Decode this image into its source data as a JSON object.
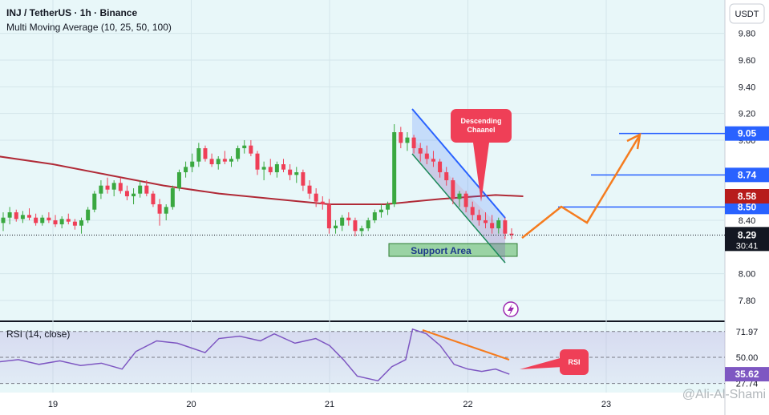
{
  "header": {
    "title": "INJ / TetherUS · 1h · Binance",
    "indicator": "Multi Moving Average (10, 25, 50, 100)"
  },
  "currency_button": "USDT",
  "annotations": {
    "descending_channel": "Descending\nChaanel",
    "support_area": "Support Area",
    "rsi_callout": "RSI"
  },
  "rsi_panel": {
    "title": "RSI (14, close)",
    "ticks": [
      "71.97",
      "50.00",
      "27.74"
    ],
    "current_label": "35.62"
  },
  "watermark": "@Ali-Al-Shami",
  "colors": {
    "bull": "#26a69a",
    "bull_candle": "#3aa840",
    "bear": "#ef3f57",
    "ma": "#b02a37",
    "channel": "#2962ff",
    "orange": "#f57c1f",
    "rsi": "#7e57c2",
    "support": "#66bb6a",
    "price_box": "#2962ff",
    "ma_box": "#b71c1c",
    "current_box": "#131722"
  },
  "chart_data": [
    {
      "type": "candlestick",
      "title": "INJ / TetherUS · 1h · Binance",
      "x_ticks": [
        "19",
        "20",
        "21",
        "22",
        "23"
      ],
      "y_ticks": [
        "9.80",
        "9.60",
        "9.40",
        "9.20",
        "9.00",
        "8.40",
        "8.00",
        "7.80"
      ],
      "ylim": [
        7.65,
        10.05
      ],
      "x_range_days": [
        18.6,
        23.2
      ],
      "current_price": {
        "value": 8.29,
        "countdown": "30:41"
      },
      "price_levels": [
        {
          "value": 9.05,
          "label": "9.05"
        },
        {
          "value": 8.74,
          "label": "8.74"
        },
        {
          "value": 8.5,
          "label": "8.50"
        }
      ],
      "moving_average": {
        "value": 8.58,
        "label": "8.58",
        "x": [
          18.6,
          19.0,
          19.4,
          19.8,
          20.2,
          20.6,
          21.0,
          21.4,
          21.8,
          22.2,
          22.4
        ],
        "y": [
          8.88,
          8.82,
          8.74,
          8.66,
          8.6,
          8.56,
          8.52,
          8.52,
          8.56,
          8.59,
          8.58
        ]
      },
      "ohlc": [
        [
          8.38,
          8.46,
          8.32,
          8.42
        ],
        [
          8.42,
          8.5,
          8.37,
          8.46
        ],
        [
          8.46,
          8.48,
          8.39,
          8.41
        ],
        [
          8.41,
          8.47,
          8.38,
          8.44
        ],
        [
          8.44,
          8.49,
          8.4,
          8.42
        ],
        [
          8.42,
          8.45,
          8.36,
          8.38
        ],
        [
          8.38,
          8.44,
          8.36,
          8.42
        ],
        [
          8.42,
          8.46,
          8.38,
          8.4
        ],
        [
          8.4,
          8.44,
          8.35,
          8.37
        ],
        [
          8.37,
          8.43,
          8.34,
          8.41
        ],
        [
          8.41,
          8.45,
          8.37,
          8.39
        ],
        [
          8.39,
          8.41,
          8.33,
          8.36
        ],
        [
          8.36,
          8.42,
          8.3,
          8.4
        ],
        [
          8.4,
          8.5,
          8.38,
          8.48
        ],
        [
          8.48,
          8.62,
          8.46,
          8.6
        ],
        [
          8.6,
          8.7,
          8.56,
          8.66
        ],
        [
          8.66,
          8.72,
          8.6,
          8.63
        ],
        [
          8.63,
          8.7,
          8.58,
          8.68
        ],
        [
          8.68,
          8.72,
          8.6,
          8.62
        ],
        [
          8.62,
          8.66,
          8.55,
          8.58
        ],
        [
          8.58,
          8.64,
          8.52,
          8.6
        ],
        [
          8.6,
          8.7,
          8.57,
          8.66
        ],
        [
          8.66,
          8.7,
          8.58,
          8.6
        ],
        [
          8.6,
          8.62,
          8.5,
          8.52
        ],
        [
          8.52,
          8.56,
          8.36,
          8.45
        ],
        [
          8.45,
          8.52,
          8.4,
          8.5
        ],
        [
          8.5,
          8.66,
          8.48,
          8.64
        ],
        [
          8.64,
          8.78,
          8.62,
          8.76
        ],
        [
          8.76,
          8.84,
          8.72,
          8.8
        ],
        [
          8.8,
          8.9,
          8.76,
          8.84
        ],
        [
          8.84,
          8.98,
          8.8,
          8.94
        ],
        [
          8.94,
          8.96,
          8.84,
          8.86
        ],
        [
          8.86,
          8.9,
          8.8,
          8.82
        ],
        [
          8.82,
          8.88,
          8.78,
          8.86
        ],
        [
          8.86,
          8.92,
          8.82,
          8.84
        ],
        [
          8.84,
          8.88,
          8.8,
          8.86
        ],
        [
          8.86,
          8.96,
          8.84,
          8.94
        ],
        [
          8.94,
          9.0,
          8.9,
          8.96
        ],
        [
          8.96,
          9.0,
          8.88,
          8.9
        ],
        [
          8.9,
          8.92,
          8.74,
          8.78
        ],
        [
          8.78,
          8.84,
          8.7,
          8.8
        ],
        [
          8.8,
          8.86,
          8.74,
          8.76
        ],
        [
          8.76,
          8.84,
          8.72,
          8.82
        ],
        [
          8.82,
          8.86,
          8.76,
          8.78
        ],
        [
          8.78,
          8.82,
          8.7,
          8.74
        ],
        [
          8.74,
          8.8,
          8.68,
          8.76
        ],
        [
          8.76,
          8.78,
          8.62,
          8.66
        ],
        [
          8.66,
          8.7,
          8.56,
          8.6
        ],
        [
          8.6,
          8.64,
          8.5,
          8.54
        ],
        [
          8.54,
          8.58,
          8.48,
          8.52
        ],
        [
          8.52,
          8.56,
          8.3,
          8.34
        ],
        [
          8.34,
          8.4,
          8.3,
          8.36
        ],
        [
          8.36,
          8.44,
          8.32,
          8.42
        ],
        [
          8.42,
          8.46,
          8.36,
          8.4
        ],
        [
          8.4,
          8.42,
          8.28,
          8.32
        ],
        [
          8.32,
          8.36,
          8.28,
          8.34
        ],
        [
          8.34,
          8.42,
          8.32,
          8.4
        ],
        [
          8.4,
          8.48,
          8.38,
          8.46
        ],
        [
          8.46,
          8.52,
          8.42,
          8.48
        ],
        [
          8.48,
          8.54,
          8.44,
          8.52
        ],
        [
          8.52,
          9.12,
          8.5,
          9.06
        ],
        [
          9.06,
          9.1,
          8.94,
          8.98
        ],
        [
          8.98,
          9.06,
          8.92,
          9.02
        ],
        [
          9.02,
          9.04,
          8.9,
          8.94
        ],
        [
          8.94,
          8.98,
          8.84,
          8.9
        ],
        [
          8.9,
          8.96,
          8.82,
          8.86
        ],
        [
          8.86,
          8.92,
          8.8,
          8.84
        ],
        [
          8.84,
          8.86,
          8.72,
          8.76
        ],
        [
          8.76,
          8.8,
          8.66,
          8.7
        ],
        [
          8.7,
          8.72,
          8.52,
          8.56
        ],
        [
          8.56,
          8.62,
          8.5,
          8.6
        ],
        [
          8.6,
          8.62,
          8.46,
          8.5
        ],
        [
          8.5,
          8.54,
          8.4,
          8.44
        ],
        [
          8.44,
          8.48,
          8.36,
          8.4
        ],
        [
          8.4,
          8.46,
          8.34,
          8.38
        ],
        [
          8.38,
          8.44,
          8.3,
          8.34
        ],
        [
          8.34,
          8.42,
          8.3,
          8.4
        ],
        [
          8.4,
          8.42,
          8.26,
          8.3
        ],
        [
          8.3,
          8.34,
          8.26,
          8.29
        ]
      ]
    },
    {
      "type": "line",
      "title": "RSI (14, close)",
      "ylim": [
        20,
        80
      ],
      "x": [
        18.6,
        18.75,
        18.9,
        19.05,
        19.2,
        19.35,
        19.5,
        19.6,
        19.75,
        19.9,
        20.0,
        20.1,
        20.2,
        20.35,
        20.5,
        20.6,
        20.75,
        20.9,
        21.0,
        21.1,
        21.2,
        21.35,
        21.45,
        21.55,
        21.6,
        21.7,
        21.8,
        21.9,
        22.0,
        22.1,
        22.2,
        22.3
      ],
      "y": [
        46,
        48,
        44,
        47,
        43,
        45,
        40,
        55,
        64,
        62,
        58,
        54,
        66,
        68,
        64,
        70,
        62,
        66,
        60,
        48,
        34,
        30,
        42,
        48,
        74,
        70,
        60,
        44,
        40,
        38,
        40,
        35.62
      ]
    }
  ]
}
